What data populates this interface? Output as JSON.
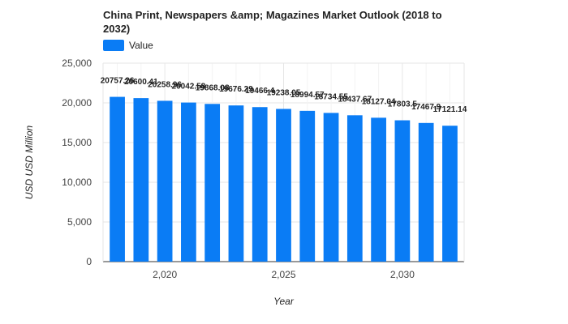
{
  "chart_data": {
    "type": "bar",
    "title": "China Print, Newspapers &amp; Magazines Market Outlook (2018 to 2032)",
    "xlabel": "Year",
    "ylabel": "USD USD Million",
    "legend": "top-left",
    "grid": true,
    "ylim": [
      0,
      25000
    ],
    "xlim": [
      2017.4,
      2032.6
    ],
    "yticks": [
      0,
      5000,
      10000,
      15000,
      20000,
      25000
    ],
    "ytick_labels": [
      "0",
      "5,000",
      "10,000",
      "15,000",
      "20,000",
      "25,000"
    ],
    "xticks": [
      2020,
      2025,
      2030
    ],
    "xtick_labels": [
      "2,020",
      "2,025",
      "2,030"
    ],
    "color": "#0a7cf5",
    "series": [
      {
        "name": "Value",
        "x": [
          2018,
          2019,
          2020,
          2021,
          2022,
          2023,
          2024,
          2025,
          2026,
          2027,
          2028,
          2029,
          2030,
          2031,
          2032
        ],
        "values": [
          20757.26,
          20600.41,
          20258.96,
          20042.58,
          19868.08,
          19676.29,
          19466.4,
          19238.05,
          18994.57,
          18734.55,
          18437.67,
          18127.04,
          17803.5,
          17467.9,
          17121.14
        ],
        "labels": [
          "20757.26",
          "20600.41",
          "20258.96",
          "20042.58",
          "19868.08",
          "19676.29",
          "19466.4",
          "19238.05",
          "18994.57",
          "18734.55",
          "18437.67",
          "18127.04",
          "17803.5",
          "17467.9",
          "17121.14"
        ]
      }
    ]
  }
}
